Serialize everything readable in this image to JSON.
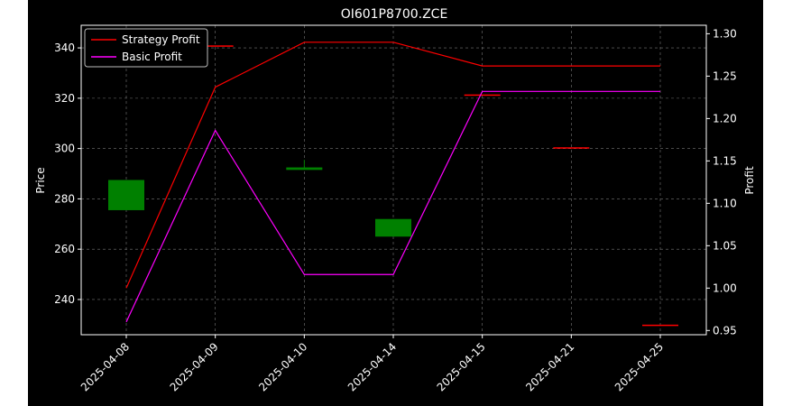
{
  "chart_data": {
    "type": "candlestick",
    "title": "OI601P8700.ZCE",
    "ylabel": "Price",
    "y2label": "Profit",
    "categories": [
      "2025-04-08",
      "2025-04-09",
      "2025-04-10",
      "2025-04-14",
      "2025-04-15",
      "2025-04-21",
      "2025-04-25"
    ],
    "ylim": [
      226,
      349
    ],
    "y2lim": [
      0.945,
      1.31
    ],
    "yticks": [
      240,
      260,
      280,
      300,
      320,
      340
    ],
    "y2ticks": [
      0.95,
      1.0,
      1.05,
      1.1,
      1.15,
      1.2,
      1.25,
      1.3
    ],
    "grid": true,
    "legend_position": "top-left",
    "candles": [
      {
        "date": "2025-04-08",
        "open": 275.5,
        "close": 287.5,
        "high": 287.5,
        "low": 275.5,
        "color": "#008000"
      },
      {
        "date": "2025-04-09",
        "open": 341.0,
        "close": 341.0,
        "high": 341.0,
        "low": 341.0,
        "color": "#ff0000"
      },
      {
        "date": "2025-04-10",
        "open": 291.5,
        "close": 292.5,
        "high": 295.5,
        "low": 291.5,
        "color": "#008000"
      },
      {
        "date": "2025-04-14",
        "open": 265.0,
        "close": 272.0,
        "high": 272.0,
        "low": 265.0,
        "color": "#008000"
      },
      {
        "date": "2025-04-15",
        "open": 321.5,
        "close": 321.5,
        "high": 321.5,
        "low": 321.5,
        "color": "#ff0000"
      },
      {
        "date": "2025-04-21",
        "open": 300.5,
        "close": 300.5,
        "high": 300.5,
        "low": 300.5,
        "color": "#ff0000"
      },
      {
        "date": "2025-04-25",
        "open": 230.0,
        "close": 230.0,
        "high": 230.0,
        "low": 230.0,
        "color": "#ff0000"
      }
    ],
    "series": [
      {
        "name": "Strategy Profit",
        "color": "#ff0000",
        "axis": "right",
        "values": [
          1.0,
          1.237,
          1.29,
          1.29,
          1.262,
          1.262,
          1.262
        ]
      },
      {
        "name": "Basic Profit",
        "color": "#ff00ff",
        "axis": "right",
        "values": [
          0.96,
          1.186,
          1.016,
          1.016,
          1.232,
          1.232,
          1.232
        ]
      }
    ]
  }
}
